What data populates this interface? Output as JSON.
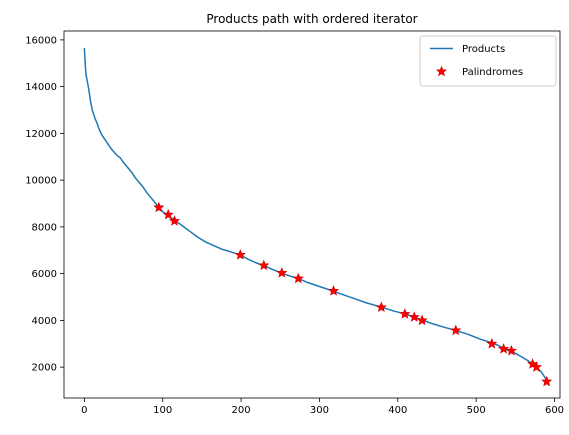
{
  "chart_data": {
    "type": "line",
    "title": "Products path with ordered iterator",
    "xlabel": "",
    "ylabel": "",
    "xlim": [
      -26,
      607
    ],
    "ylim": [
      680,
      16380
    ],
    "xticks": [
      0,
      100,
      200,
      300,
      400,
      500,
      600
    ],
    "yticks": [
      2000,
      4000,
      6000,
      8000,
      10000,
      12000,
      14000,
      16000
    ],
    "grid": false,
    "legend_position": "top-right",
    "colors": {
      "products": "#1f77b4",
      "palindromes": "#ff0000"
    },
    "series": [
      {
        "name": "Products",
        "style": "line",
        "points": [
          [
            0,
            15650
          ],
          [
            1,
            15000
          ],
          [
            2,
            14550
          ],
          [
            3,
            14350
          ],
          [
            5,
            14000
          ],
          [
            6,
            13800
          ],
          [
            8,
            13350
          ],
          [
            10,
            13000
          ],
          [
            12,
            12800
          ],
          [
            14,
            12600
          ],
          [
            16,
            12450
          ],
          [
            18,
            12250
          ],
          [
            20,
            12100
          ],
          [
            22,
            11950
          ],
          [
            25,
            11800
          ],
          [
            28,
            11650
          ],
          [
            31,
            11500
          ],
          [
            34,
            11350
          ],
          [
            38,
            11200
          ],
          [
            42,
            11050
          ],
          [
            46,
            10950
          ],
          [
            50,
            10750
          ],
          [
            55,
            10550
          ],
          [
            60,
            10350
          ],
          [
            65,
            10100
          ],
          [
            70,
            9900
          ],
          [
            75,
            9700
          ],
          [
            80,
            9450
          ],
          [
            85,
            9250
          ],
          [
            90,
            9050
          ],
          [
            95,
            8830
          ],
          [
            100,
            8650
          ],
          [
            108,
            8450
          ],
          [
            116,
            8270
          ],
          [
            125,
            8050
          ],
          [
            135,
            7800
          ],
          [
            145,
            7550
          ],
          [
            155,
            7350
          ],
          [
            165,
            7200
          ],
          [
            175,
            7050
          ],
          [
            185,
            6950
          ],
          [
            199,
            6800
          ],
          [
            210,
            6600
          ],
          [
            220,
            6450
          ],
          [
            229,
            6350
          ],
          [
            240,
            6180
          ],
          [
            252,
            6020
          ],
          [
            262,
            5900
          ],
          [
            273,
            5790
          ],
          [
            285,
            5620
          ],
          [
            300,
            5450
          ],
          [
            318,
            5250
          ],
          [
            330,
            5100
          ],
          [
            345,
            4930
          ],
          [
            360,
            4750
          ],
          [
            380,
            4560
          ],
          [
            395,
            4400
          ],
          [
            410,
            4270
          ],
          [
            421,
            4140
          ],
          [
            432,
            4000
          ],
          [
            445,
            3850
          ],
          [
            460,
            3700
          ],
          [
            474,
            3570
          ],
          [
            490,
            3400
          ],
          [
            505,
            3200
          ],
          [
            521,
            3030
          ],
          [
            530,
            2900
          ],
          [
            535,
            2780
          ],
          [
            545,
            2680
          ],
          [
            555,
            2500
          ],
          [
            565,
            2300
          ],
          [
            572,
            2130
          ],
          [
            577,
            2000
          ],
          [
            583,
            1800
          ],
          [
            588,
            1550
          ],
          [
            591,
            1380
          ]
        ]
      },
      {
        "name": "Palindromes",
        "style": "marker",
        "marker": "star",
        "points": [
          [
            95,
            8830
          ],
          [
            107,
            8520
          ],
          [
            115,
            8250
          ],
          [
            199,
            6800
          ],
          [
            229,
            6350
          ],
          [
            252,
            6030
          ],
          [
            273,
            5790
          ],
          [
            318,
            5260
          ],
          [
            379,
            4560
          ],
          [
            409,
            4270
          ],
          [
            421,
            4140
          ],
          [
            431,
            4000
          ],
          [
            474,
            3570
          ],
          [
            520,
            3000
          ],
          [
            535,
            2780
          ],
          [
            545,
            2700
          ],
          [
            572,
            2130
          ],
          [
            577,
            2000
          ],
          [
            590,
            1380
          ]
        ]
      }
    ]
  }
}
